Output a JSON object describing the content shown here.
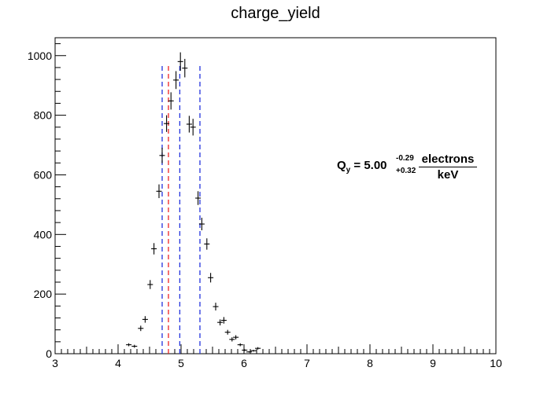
{
  "chart_data": {
    "type": "scatter",
    "title": "charge_yield",
    "xlabel": "",
    "ylabel": "",
    "xlim": [
      3,
      10
    ],
    "ylim": [
      0,
      1060
    ],
    "xticks": [
      3,
      4,
      5,
      6,
      7,
      8,
      9,
      10
    ],
    "yticks": [
      0,
      200,
      400,
      600,
      800,
      1000
    ],
    "grid": false,
    "legend": "none",
    "bin_width": 0.0875,
    "points": [
      {
        "x": 4.17,
        "y": 30,
        "err": 5
      },
      {
        "x": 4.26,
        "y": 25,
        "err": 5
      },
      {
        "x": 4.36,
        "y": 85,
        "err": 9
      },
      {
        "x": 4.43,
        "y": 115,
        "err": 11
      },
      {
        "x": 4.51,
        "y": 232,
        "err": 15
      },
      {
        "x": 4.57,
        "y": 352,
        "err": 19
      },
      {
        "x": 4.65,
        "y": 545,
        "err": 23
      },
      {
        "x": 4.7,
        "y": 665,
        "err": 26
      },
      {
        "x": 4.77,
        "y": 772,
        "err": 28
      },
      {
        "x": 4.84,
        "y": 848,
        "err": 29
      },
      {
        "x": 4.92,
        "y": 918,
        "err": 30
      },
      {
        "x": 4.99,
        "y": 980,
        "err": 31
      },
      {
        "x": 5.06,
        "y": 958,
        "err": 31
      },
      {
        "x": 5.13,
        "y": 770,
        "err": 28
      },
      {
        "x": 5.19,
        "y": 760,
        "err": 28
      },
      {
        "x": 5.27,
        "y": 522,
        "err": 23
      },
      {
        "x": 5.33,
        "y": 435,
        "err": 21
      },
      {
        "x": 5.41,
        "y": 368,
        "err": 19
      },
      {
        "x": 5.47,
        "y": 255,
        "err": 16
      },
      {
        "x": 5.55,
        "y": 158,
        "err": 13
      },
      {
        "x": 5.62,
        "y": 105,
        "err": 10
      },
      {
        "x": 5.68,
        "y": 112,
        "err": 11
      },
      {
        "x": 5.74,
        "y": 72,
        "err": 8
      },
      {
        "x": 5.81,
        "y": 48,
        "err": 7
      },
      {
        "x": 5.87,
        "y": 55,
        "err": 7
      },
      {
        "x": 5.94,
        "y": 30,
        "err": 5
      },
      {
        "x": 6.01,
        "y": 12,
        "err": 3
      },
      {
        "x": 6.08,
        "y": 6,
        "err": 2
      },
      {
        "x": 6.15,
        "y": 10,
        "err": 3
      },
      {
        "x": 6.22,
        "y": 18,
        "err": 4
      }
    ],
    "vlines": [
      {
        "x": 4.7,
        "color": "#2233dd"
      },
      {
        "x": 4.8,
        "color": "#ee2222"
      },
      {
        "x": 4.98,
        "color": "#2233dd"
      },
      {
        "x": 5.3,
        "color": "#2233dd"
      }
    ],
    "vline_top": 970,
    "marker_color": "#000000",
    "annotation": {
      "lead": "Q",
      "lead_sub": "y",
      "equals": " = 5.00",
      "upper": "-0.29",
      "lower": "+0.32",
      "numerator": "electrons",
      "denominator": "keV"
    }
  }
}
